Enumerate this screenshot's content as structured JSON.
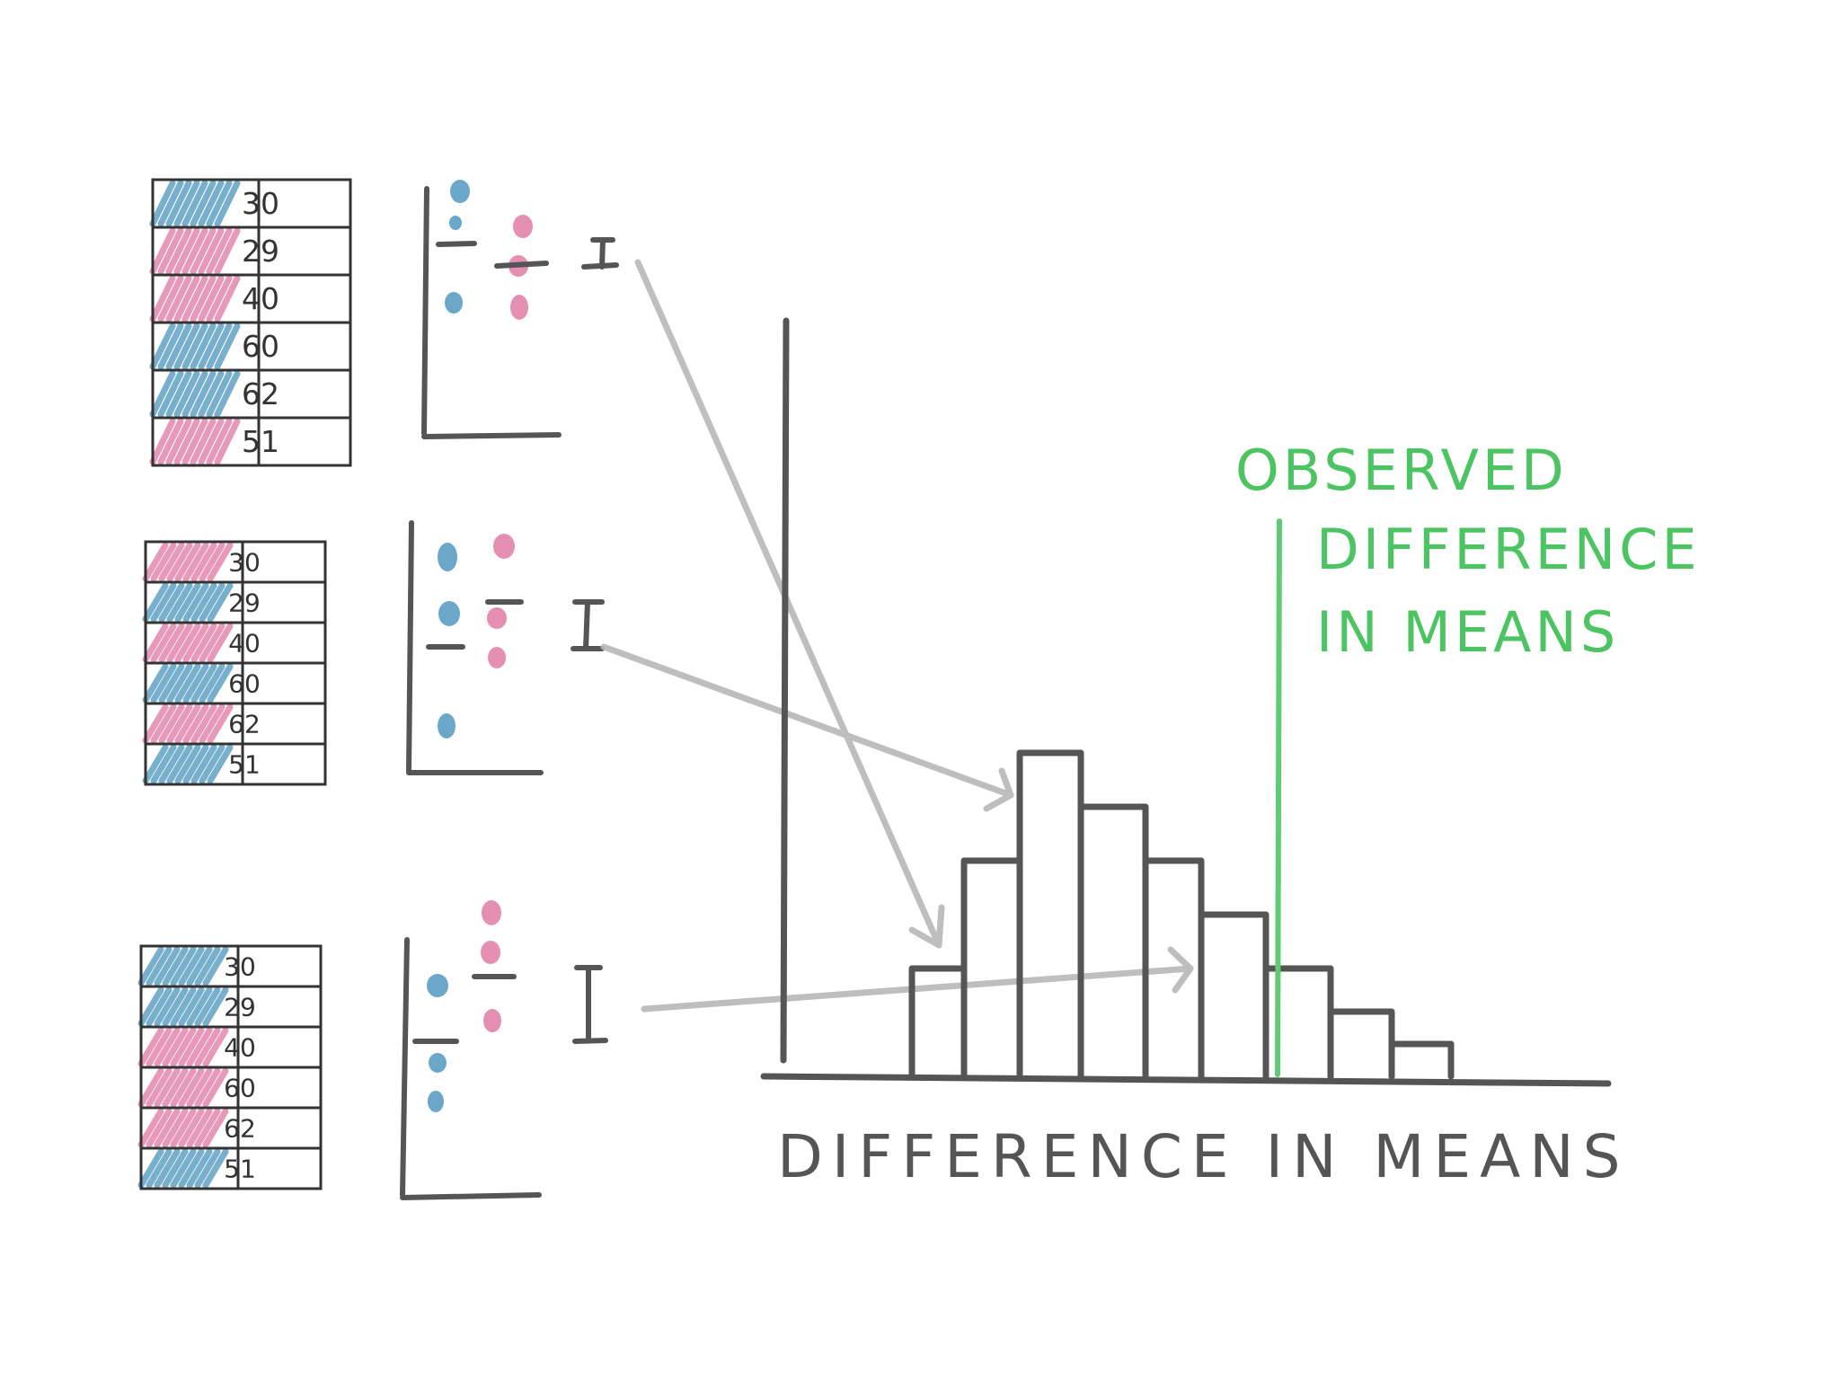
{
  "tables": [
    {
      "rows": [
        {
          "value": "30",
          "group": "blue"
        },
        {
          "value": "29",
          "group": "pink"
        },
        {
          "value": "40",
          "group": "pink"
        },
        {
          "value": "60",
          "group": "blue"
        },
        {
          "value": "62",
          "group": "blue"
        },
        {
          "value": "51",
          "group": "pink"
        }
      ]
    },
    {
      "rows": [
        {
          "value": "30",
          "group": "pink"
        },
        {
          "value": "29",
          "group": "blue"
        },
        {
          "value": "40",
          "group": "pink"
        },
        {
          "value": "60",
          "group": "blue"
        },
        {
          "value": "62",
          "group": "pink"
        },
        {
          "value": "51",
          "group": "blue"
        }
      ]
    },
    {
      "rows": [
        {
          "value": "30",
          "group": "blue"
        },
        {
          "value": "29",
          "group": "blue"
        },
        {
          "value": "40",
          "group": "pink"
        },
        {
          "value": "60",
          "group": "pink"
        },
        {
          "value": "62",
          "group": "pink"
        },
        {
          "value": "51",
          "group": "blue"
        }
      ]
    }
  ],
  "histogram": {
    "bar_counts": [
      1,
      2,
      3,
      2.5,
      2,
      1.5,
      1,
      0.6,
      0.3
    ],
    "observed_line_position": "between bins 6 and 7"
  },
  "labels": {
    "observed": [
      "OBSERVED",
      "DIFFERENCE",
      "IN MEANS"
    ],
    "xaxis": "DIFFERENCE IN MEANS"
  },
  "colors": {
    "blue": "#6aa7c8",
    "pink": "#e58fb2",
    "ink": "#555555",
    "green": "#5fcb72",
    "arrow": "#b8b8b8"
  }
}
